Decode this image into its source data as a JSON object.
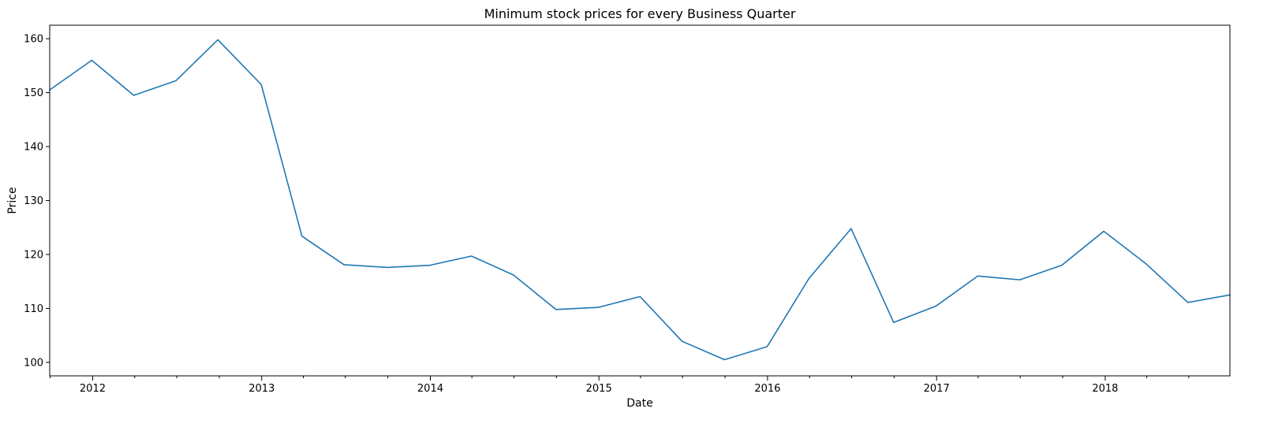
{
  "chart_data": {
    "type": "line",
    "title": "Minimum stock prices for every Business Quarter",
    "xlabel": "Date",
    "ylabel": "Price",
    "ylim": [
      97.5,
      162.5
    ],
    "xlim": [
      "2011-09-30",
      "2018-09-28"
    ],
    "grid": false,
    "legend": "none",
    "line_color": "#1f77b4",
    "x_ticks": [
      "2012",
      "2013",
      "2014",
      "2015",
      "2016",
      "2017",
      "2018"
    ],
    "y_ticks": [
      100,
      110,
      120,
      130,
      140,
      150,
      160
    ],
    "series": [
      {
        "x": [
          "2011-09-30",
          "2011-12-30",
          "2012-03-30",
          "2012-06-29",
          "2012-09-28",
          "2012-12-31",
          "2013-03-29",
          "2013-06-28",
          "2013-09-30",
          "2013-12-31",
          "2014-03-31",
          "2014-06-30",
          "2014-09-30",
          "2014-12-31",
          "2015-03-31",
          "2015-06-30",
          "2015-09-30",
          "2015-12-31",
          "2016-03-31",
          "2016-06-30",
          "2016-09-30",
          "2016-12-30",
          "2017-03-31",
          "2017-06-30",
          "2017-09-29",
          "2017-12-29",
          "2018-03-30",
          "2018-06-29",
          "2018-09-28"
        ],
        "values": [
          150.5,
          156.0,
          149.5,
          152.2,
          159.8,
          151.5,
          123.4,
          118.1,
          117.6,
          118.0,
          119.7,
          116.2,
          109.8,
          110.2,
          112.2,
          103.9,
          100.5,
          102.9,
          115.6,
          124.8,
          107.4,
          110.4,
          116.0,
          115.3,
          118.0,
          124.3,
          118.3,
          111.1,
          112.5
        ]
      }
    ]
  }
}
